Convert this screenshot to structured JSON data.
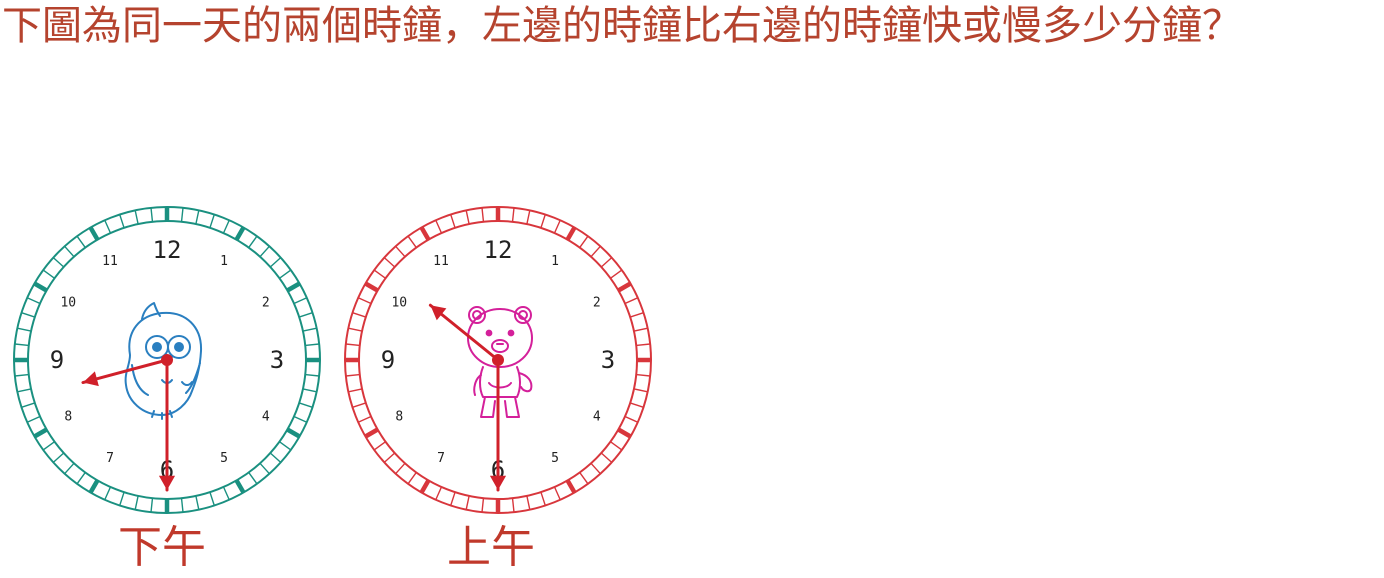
{
  "question": {
    "text": "下圖為同一天的兩個時鐘，左邊的時鐘比右邊的時鐘快或慢多少分鐘？"
  },
  "clocks": [
    {
      "id": "left",
      "caption": "下午",
      "ring_color": "#1a9080",
      "hand_color": "#d0202a",
      "hour_hand_points_to": 8.5,
      "minute_hand_points_to_minutes": 30,
      "character": "owl-icon",
      "character_color": "#2a7fc0",
      "numbers": [
        "12",
        "1",
        "2",
        "3",
        "4",
        "5",
        "6",
        "7",
        "8",
        "9",
        "10",
        "11"
      ]
    },
    {
      "id": "right",
      "caption": "上午",
      "ring_color": "#d8363c",
      "hand_color": "#d0202a",
      "hour_hand_points_to": 10.3,
      "minute_hand_points_to_minutes": 30,
      "character": "bear-icon",
      "character_color": "#d4209a",
      "numbers": [
        "12",
        "1",
        "2",
        "3",
        "4",
        "5",
        "6",
        "7",
        "8",
        "9",
        "10",
        "11"
      ]
    }
  ]
}
